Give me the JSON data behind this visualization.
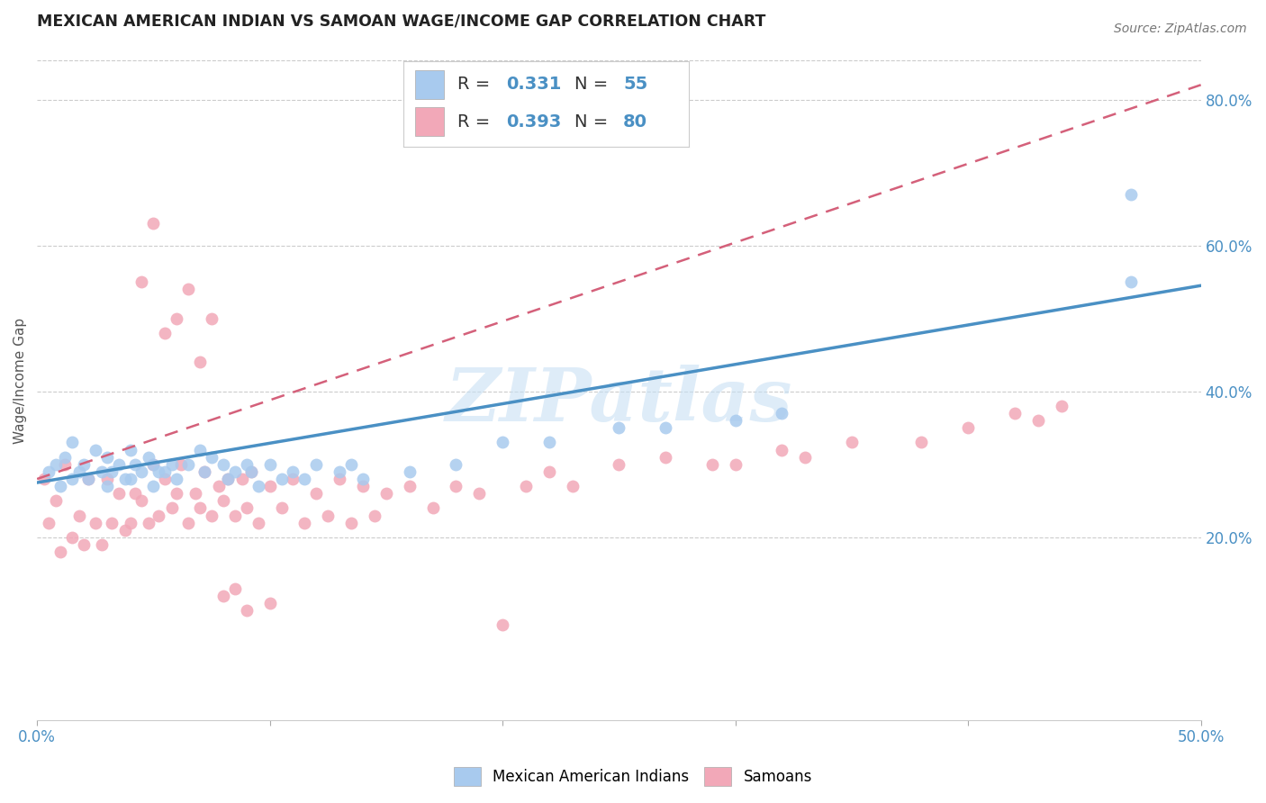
{
  "title": "MEXICAN AMERICAN INDIAN VS SAMOAN WAGE/INCOME GAP CORRELATION CHART",
  "source": "Source: ZipAtlas.com",
  "ylabel": "Wage/Income Gap",
  "xlim": [
    0.0,
    0.5
  ],
  "ylim": [
    -0.05,
    0.88
  ],
  "xticks": [
    0.0,
    0.1,
    0.2,
    0.3,
    0.4,
    0.5
  ],
  "xtick_labels": [
    "0.0%",
    "",
    "",
    "",
    "",
    "50.0%"
  ],
  "yticks_right": [
    0.2,
    0.4,
    0.6,
    0.8
  ],
  "ytick_labels_right": [
    "20.0%",
    "40.0%",
    "60.0%",
    "80.0%"
  ],
  "R_blue": 0.331,
  "N_blue": 55,
  "R_pink": 0.393,
  "N_pink": 80,
  "blue_color": "#A8CAEE",
  "pink_color": "#F2A8B8",
  "blue_line_color": "#4A90C4",
  "pink_line_color": "#D4607A",
  "watermark": "ZIPatlas",
  "blue_scatter_x": [
    0.005,
    0.008,
    0.01,
    0.012,
    0.015,
    0.015,
    0.018,
    0.02,
    0.022,
    0.025,
    0.028,
    0.03,
    0.03,
    0.032,
    0.035,
    0.038,
    0.04,
    0.04,
    0.042,
    0.045,
    0.048,
    0.05,
    0.05,
    0.052,
    0.055,
    0.058,
    0.06,
    0.065,
    0.07,
    0.072,
    0.075,
    0.08,
    0.082,
    0.085,
    0.09,
    0.092,
    0.095,
    0.1,
    0.105,
    0.11,
    0.115,
    0.12,
    0.13,
    0.135,
    0.14,
    0.16,
    0.18,
    0.2,
    0.22,
    0.25,
    0.27,
    0.3,
    0.32,
    0.47,
    0.47
  ],
  "blue_scatter_y": [
    0.29,
    0.3,
    0.27,
    0.31,
    0.28,
    0.33,
    0.29,
    0.3,
    0.28,
    0.32,
    0.29,
    0.27,
    0.31,
    0.29,
    0.3,
    0.28,
    0.28,
    0.32,
    0.3,
    0.29,
    0.31,
    0.27,
    0.3,
    0.29,
    0.29,
    0.3,
    0.28,
    0.3,
    0.32,
    0.29,
    0.31,
    0.3,
    0.28,
    0.29,
    0.3,
    0.29,
    0.27,
    0.3,
    0.28,
    0.29,
    0.28,
    0.3,
    0.29,
    0.3,
    0.28,
    0.29,
    0.3,
    0.33,
    0.33,
    0.35,
    0.35,
    0.36,
    0.37,
    0.55,
    0.67
  ],
  "pink_scatter_x": [
    0.003,
    0.005,
    0.008,
    0.01,
    0.012,
    0.015,
    0.018,
    0.02,
    0.022,
    0.025,
    0.028,
    0.03,
    0.032,
    0.035,
    0.038,
    0.04,
    0.042,
    0.045,
    0.048,
    0.05,
    0.052,
    0.055,
    0.058,
    0.06,
    0.062,
    0.065,
    0.068,
    0.07,
    0.072,
    0.075,
    0.078,
    0.08,
    0.082,
    0.085,
    0.088,
    0.09,
    0.092,
    0.095,
    0.1,
    0.105,
    0.11,
    0.115,
    0.12,
    0.125,
    0.13,
    0.135,
    0.14,
    0.145,
    0.15,
    0.16,
    0.17,
    0.18,
    0.19,
    0.2,
    0.21,
    0.22,
    0.23,
    0.25,
    0.27,
    0.29,
    0.3,
    0.32,
    0.33,
    0.35,
    0.38,
    0.4,
    0.42,
    0.43,
    0.44,
    0.045,
    0.05,
    0.055,
    0.06,
    0.065,
    0.07,
    0.075,
    0.08,
    0.085,
    0.09,
    0.1
  ],
  "pink_scatter_y": [
    0.28,
    0.22,
    0.25,
    0.18,
    0.3,
    0.2,
    0.23,
    0.19,
    0.28,
    0.22,
    0.19,
    0.28,
    0.22,
    0.26,
    0.21,
    0.22,
    0.26,
    0.25,
    0.22,
    0.3,
    0.23,
    0.28,
    0.24,
    0.26,
    0.3,
    0.22,
    0.26,
    0.24,
    0.29,
    0.23,
    0.27,
    0.25,
    0.28,
    0.23,
    0.28,
    0.24,
    0.29,
    0.22,
    0.27,
    0.24,
    0.28,
    0.22,
    0.26,
    0.23,
    0.28,
    0.22,
    0.27,
    0.23,
    0.26,
    0.27,
    0.24,
    0.27,
    0.26,
    0.08,
    0.27,
    0.29,
    0.27,
    0.3,
    0.31,
    0.3,
    0.3,
    0.32,
    0.31,
    0.33,
    0.33,
    0.35,
    0.37,
    0.36,
    0.38,
    0.55,
    0.63,
    0.48,
    0.5,
    0.54,
    0.44,
    0.5,
    0.12,
    0.13,
    0.1,
    0.11
  ]
}
